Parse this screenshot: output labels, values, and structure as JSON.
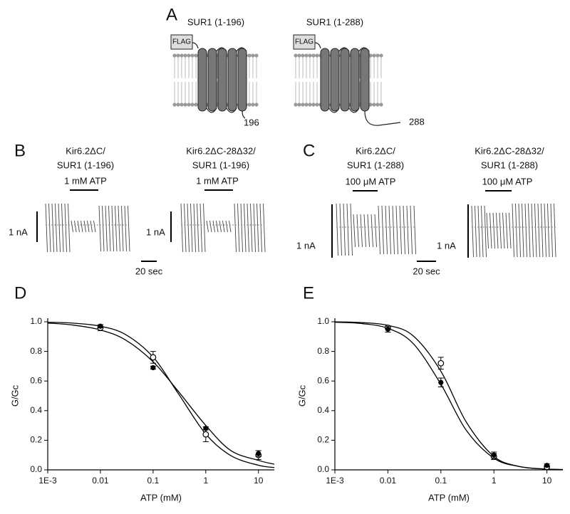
{
  "panel_a": {
    "label": "A",
    "constructs": [
      {
        "title": "SUR1 (1-196)",
        "tag": "FLAG",
        "end": "196"
      },
      {
        "title": "SUR1 (1-288)",
        "tag": "FLAG",
        "end": "288"
      }
    ]
  },
  "panel_b": {
    "label": "B",
    "traces": [
      {
        "title_lines": [
          "Kir6.2ΔC/",
          "SUR1 (1-196)"
        ],
        "treatment": "1 mM ATP",
        "scale": "1 nA"
      },
      {
        "title_lines": [
          "Kir6.2ΔC-28Δ32/",
          "SUR1 (1-196)"
        ],
        "treatment": "1 mM ATP",
        "scale": "1 nA"
      }
    ],
    "time_scale": "20 sec"
  },
  "panel_c": {
    "label": "C",
    "traces": [
      {
        "title_lines": [
          "Kir6.2ΔC/",
          "SUR1 (1-288)"
        ],
        "treatment": "100 μM ATP",
        "scale": "1 nA"
      },
      {
        "title_lines": [
          "Kir6.2ΔC-28Δ32/",
          "SUR1 (1-288)"
        ],
        "treatment": "100 μM ATP",
        "scale": "1 nA"
      }
    ],
    "time_scale": "20 sec"
  },
  "chart_data": [
    {
      "type": "line",
      "panel_label": "D",
      "y_label": "G/Gc",
      "x_label": "ATP (mM)",
      "log_x": true,
      "xlim": [
        0.001,
        20
      ],
      "ylim": [
        0,
        1
      ],
      "xticks": [
        {
          "value": 0.001,
          "label": "1E-3"
        },
        0.01,
        0.1,
        1,
        10
      ],
      "yticks": [
        {
          "value": 0,
          "label": "0.0"
        },
        {
          "value": 0.2,
          "label": "0.2"
        },
        {
          "value": 0.4,
          "label": "0.4"
        },
        {
          "value": 0.6,
          "label": "0.6"
        },
        {
          "value": 0.8,
          "label": "0.8"
        },
        {
          "value": 1,
          "label": "1.0"
        }
      ],
      "x": [
        0.01,
        0.1,
        1,
        10
      ],
      "series": [
        {
          "marker": "open",
          "color": "#000000",
          "values": [
            0.96,
            0.76,
            0.24,
            0.1
          ],
          "errors": [
            0.02,
            0.04,
            0.05,
            0.03
          ]
        },
        {
          "marker": "filled",
          "color": "#000000",
          "values": [
            0.97,
            0.69,
            0.28,
            0.11
          ],
          "errors": [
            0.01,
            0.01,
            0.01,
            0.02
          ]
        }
      ],
      "curves": [
        {
          "color": "#000000",
          "x": [
            0.001,
            0.003,
            0.01,
            0.03,
            0.1,
            0.3,
            1,
            3,
            10,
            20
          ],
          "values": [
            0.997,
            0.991,
            0.97,
            0.914,
            0.762,
            0.516,
            0.242,
            0.096,
            0.031,
            0.016
          ]
        },
        {
          "color": "#000000",
          "x": [
            0.001,
            0.003,
            0.01,
            0.03,
            0.1,
            0.3,
            1,
            3,
            10,
            20
          ],
          "values": [
            0.991,
            0.978,
            0.945,
            0.877,
            0.73,
            0.531,
            0.3,
            0.13,
            0.064,
            0.038
          ]
        }
      ]
    },
    {
      "type": "line",
      "panel_label": "E",
      "y_label": "G/Gc",
      "x_label": "ATP (mM)",
      "log_x": true,
      "xlim": [
        0.001,
        20
      ],
      "ylim": [
        0,
        1
      ],
      "xticks": [
        {
          "value": 0.001,
          "label": "1E-3"
        },
        0.01,
        0.1,
        1,
        10
      ],
      "yticks": [
        {
          "value": 0,
          "label": "0.0"
        },
        {
          "value": 0.2,
          "label": "0.2"
        },
        {
          "value": 0.4,
          "label": "0.4"
        },
        {
          "value": 0.6,
          "label": "0.6"
        },
        {
          "value": 0.8,
          "label": "0.8"
        },
        {
          "value": 1,
          "label": "1.0"
        }
      ],
      "x": [
        0.01,
        0.1,
        1,
        10
      ],
      "series": [
        {
          "marker": "open",
          "color": "#000000",
          "values": [
            0.96,
            0.72,
            0.09,
            0.02
          ],
          "errors": [
            0.01,
            0.04,
            0.02,
            0.01
          ]
        },
        {
          "marker": "filled",
          "color": "#000000",
          "values": [
            0.95,
            0.59,
            0.1,
            0.03
          ],
          "errors": [
            0.02,
            0.03,
            0.02,
            0.01
          ]
        }
      ],
      "curves": [
        {
          "color": "#000000",
          "x": [
            0.001,
            0.003,
            0.01,
            0.03,
            0.1,
            0.3,
            1,
            3,
            10,
            20
          ],
          "values": [
            1.0,
            0.995,
            0.976,
            0.905,
            0.666,
            0.324,
            0.091,
            0.023,
            0.005,
            0.002
          ]
        },
        {
          "color": "#000000",
          "x": [
            0.001,
            0.003,
            0.01,
            0.03,
            0.1,
            0.3,
            1,
            3,
            10,
            20
          ],
          "values": [
            0.997,
            0.989,
            0.956,
            0.853,
            0.578,
            0.268,
            0.079,
            0.023,
            0.005,
            0.002
          ]
        }
      ]
    }
  ]
}
